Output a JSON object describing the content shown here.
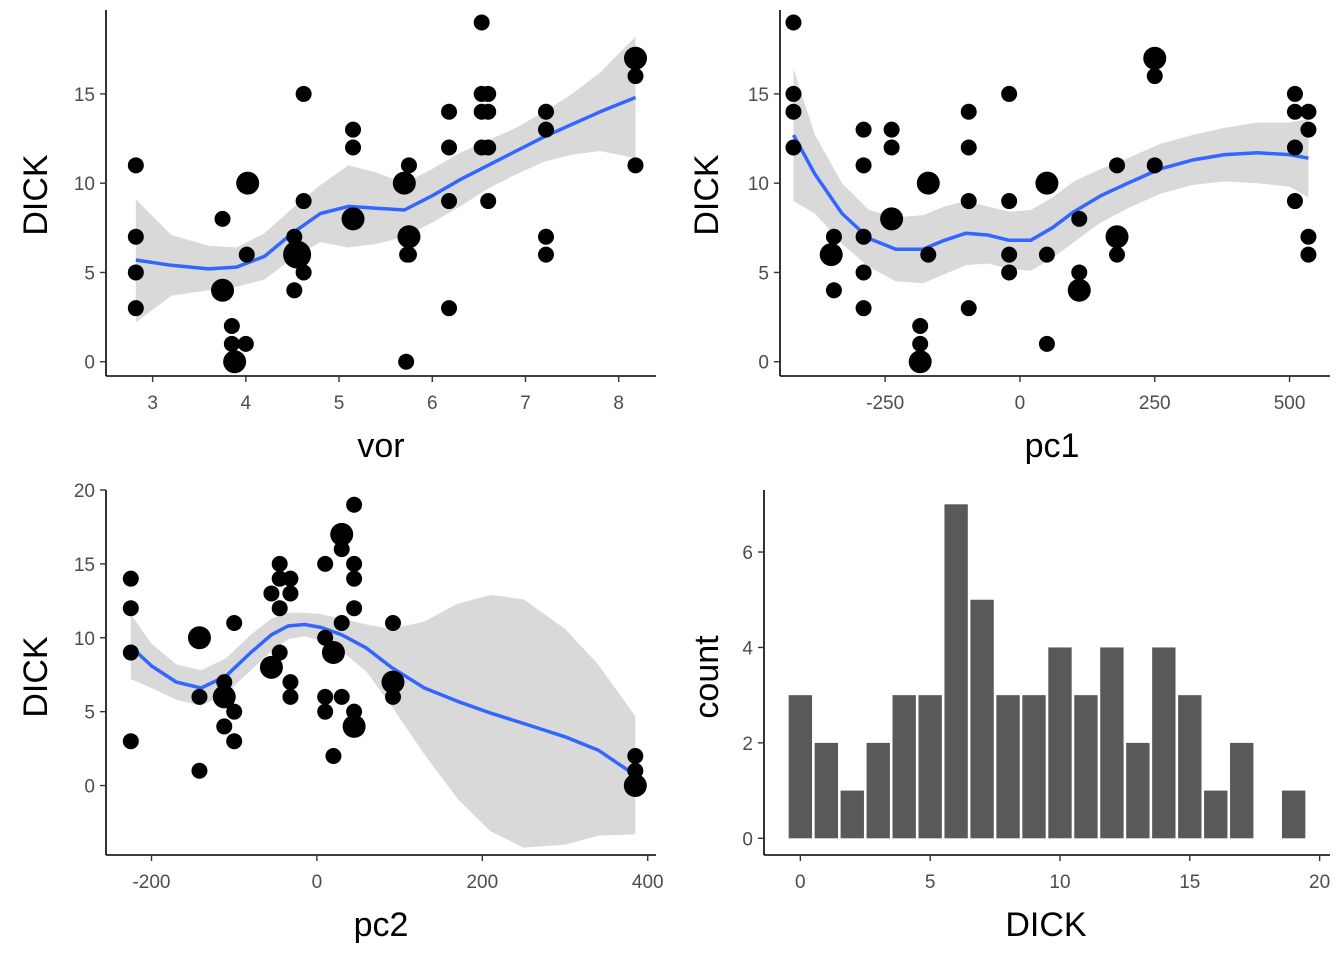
{
  "chart_data": [
    {
      "type": "scatter",
      "xlabel": "vor",
      "ylabel": "DICK",
      "xlim": [
        2.5,
        8.4
      ],
      "ylim": [
        -0.8,
        19.7
      ],
      "xticks": [
        3,
        4,
        5,
        6,
        7,
        8
      ],
      "yticks": [
        0,
        5,
        10,
        15
      ],
      "grid": false,
      "points": [
        {
          "x": 2.82,
          "y": 11,
          "size": 1
        },
        {
          "x": 2.82,
          "y": 7,
          "size": 1
        },
        {
          "x": 2.82,
          "y": 5,
          "size": 1
        },
        {
          "x": 2.82,
          "y": 3,
          "size": 1
        },
        {
          "x": 3.75,
          "y": 8,
          "size": 1
        },
        {
          "x": 3.75,
          "y": 4,
          "size": 2
        },
        {
          "x": 3.85,
          "y": 2,
          "size": 1
        },
        {
          "x": 3.85,
          "y": 1,
          "size": 1
        },
        {
          "x": 3.88,
          "y": 0,
          "size": 2
        },
        {
          "x": 4.0,
          "y": 1,
          "size": 1
        },
        {
          "x": 4.01,
          "y": 6,
          "size": 1
        },
        {
          "x": 4.02,
          "y": 10,
          "size": 2
        },
        {
          "x": 4.52,
          "y": 7,
          "size": 1
        },
        {
          "x": 4.52,
          "y": 4,
          "size": 1
        },
        {
          "x": 4.55,
          "y": 6,
          "size": 3
        },
        {
          "x": 4.62,
          "y": 9,
          "size": 1
        },
        {
          "x": 4.62,
          "y": 5,
          "size": 1
        },
        {
          "x": 4.62,
          "y": 15,
          "size": 1
        },
        {
          "x": 5.15,
          "y": 13,
          "size": 1
        },
        {
          "x": 5.15,
          "y": 12,
          "size": 1
        },
        {
          "x": 5.15,
          "y": 8,
          "size": 2
        },
        {
          "x": 5.7,
          "y": 10,
          "size": 2
        },
        {
          "x": 5.72,
          "y": 0,
          "size": 1
        },
        {
          "x": 5.73,
          "y": 6,
          "size": 1
        },
        {
          "x": 5.75,
          "y": 7,
          "size": 2
        },
        {
          "x": 5.75,
          "y": 11,
          "size": 1
        },
        {
          "x": 5.75,
          "y": 6,
          "size": 1
        },
        {
          "x": 6.18,
          "y": 14,
          "size": 1
        },
        {
          "x": 6.18,
          "y": 12,
          "size": 1
        },
        {
          "x": 6.18,
          "y": 9,
          "size": 1
        },
        {
          "x": 6.18,
          "y": 3,
          "size": 1
        },
        {
          "x": 6.53,
          "y": 19,
          "size": 1
        },
        {
          "x": 6.53,
          "y": 15,
          "size": 1
        },
        {
          "x": 6.53,
          "y": 14,
          "size": 1
        },
        {
          "x": 6.53,
          "y": 12,
          "size": 1
        },
        {
          "x": 6.6,
          "y": 15,
          "size": 1
        },
        {
          "x": 6.6,
          "y": 14,
          "size": 1
        },
        {
          "x": 6.6,
          "y": 12,
          "size": 1
        },
        {
          "x": 6.6,
          "y": 9,
          "size": 1
        },
        {
          "x": 7.22,
          "y": 14,
          "size": 1
        },
        {
          "x": 7.22,
          "y": 13,
          "size": 1
        },
        {
          "x": 7.22,
          "y": 7,
          "size": 1
        },
        {
          "x": 7.22,
          "y": 6,
          "size": 1
        },
        {
          "x": 8.18,
          "y": 17,
          "size": 2
        },
        {
          "x": 8.18,
          "y": 16,
          "size": 1
        },
        {
          "x": 8.18,
          "y": 11,
          "size": 1
        }
      ],
      "smooth": {
        "x": [
          2.82,
          3.2,
          3.6,
          3.9,
          4.2,
          4.5,
          4.8,
          5.1,
          5.4,
          5.7,
          6.0,
          6.3,
          6.6,
          6.9,
          7.2,
          7.5,
          7.8,
          8.18
        ],
        "y": [
          5.7,
          5.4,
          5.2,
          5.3,
          5.9,
          7.2,
          8.3,
          8.7,
          8.6,
          8.5,
          9.3,
          10.2,
          11.0,
          11.8,
          12.6,
          13.3,
          14.0,
          14.8
        ],
        "lower": [
          2.2,
          3.7,
          4.0,
          4.2,
          4.6,
          5.8,
          6.7,
          6.4,
          6.6,
          7.0,
          7.8,
          8.7,
          9.7,
          10.5,
          11.2,
          11.6,
          11.8,
          11.4
        ],
        "upper": [
          9.1,
          7.1,
          6.5,
          6.4,
          7.2,
          8.6,
          9.9,
          11.0,
          10.6,
          10.0,
          10.8,
          11.7,
          12.4,
          13.1,
          14.0,
          15.0,
          16.2,
          18.2
        ]
      }
    },
    {
      "type": "scatter",
      "xlabel": "pc1",
      "ylabel": "DICK",
      "xlim": [
        -445,
        575
      ],
      "ylim": [
        -0.8,
        19.7
      ],
      "xticks": [
        -250,
        0,
        250,
        500
      ],
      "yticks": [
        0,
        5,
        10,
        15
      ],
      "grid": false,
      "points": [
        {
          "x": -420,
          "y": 19,
          "size": 1
        },
        {
          "x": -420,
          "y": 15,
          "size": 1
        },
        {
          "x": -420,
          "y": 14,
          "size": 1
        },
        {
          "x": -420,
          "y": 12,
          "size": 1
        },
        {
          "x": -345,
          "y": 7,
          "size": 1
        },
        {
          "x": -350,
          "y": 6,
          "size": 2
        },
        {
          "x": -345,
          "y": 4,
          "size": 1
        },
        {
          "x": -290,
          "y": 13,
          "size": 1
        },
        {
          "x": -290,
          "y": 11,
          "size": 1
        },
        {
          "x": -290,
          "y": 7,
          "size": 1
        },
        {
          "x": -290,
          "y": 5,
          "size": 1
        },
        {
          "x": -290,
          "y": 3,
          "size": 1
        },
        {
          "x": -238,
          "y": 13,
          "size": 1
        },
        {
          "x": -238,
          "y": 12,
          "size": 1
        },
        {
          "x": -238,
          "y": 8,
          "size": 2
        },
        {
          "x": -185,
          "y": 2,
          "size": 1
        },
        {
          "x": -185,
          "y": 1,
          "size": 1
        },
        {
          "x": -185,
          "y": 0,
          "size": 2
        },
        {
          "x": -170,
          "y": 10,
          "size": 2
        },
        {
          "x": -170,
          "y": 6,
          "size": 1
        },
        {
          "x": -95,
          "y": 14,
          "size": 1
        },
        {
          "x": -95,
          "y": 12,
          "size": 1
        },
        {
          "x": -95,
          "y": 9,
          "size": 1
        },
        {
          "x": -95,
          "y": 3,
          "size": 1
        },
        {
          "x": -20,
          "y": 15,
          "size": 1
        },
        {
          "x": -20,
          "y": 9,
          "size": 1
        },
        {
          "x": -20,
          "y": 6,
          "size": 1
        },
        {
          "x": -20,
          "y": 5,
          "size": 1
        },
        {
          "x": 50,
          "y": 10,
          "size": 2
        },
        {
          "x": 50,
          "y": 6,
          "size": 1
        },
        {
          "x": 50,
          "y": 1,
          "size": 1
        },
        {
          "x": 110,
          "y": 8,
          "size": 1
        },
        {
          "x": 110,
          "y": 5,
          "size": 1
        },
        {
          "x": 110,
          "y": 4,
          "size": 2
        },
        {
          "x": 180,
          "y": 11,
          "size": 1
        },
        {
          "x": 180,
          "y": 7,
          "size": 2
        },
        {
          "x": 180,
          "y": 6,
          "size": 1
        },
        {
          "x": 250,
          "y": 17,
          "size": 2
        },
        {
          "x": 250,
          "y": 16,
          "size": 1
        },
        {
          "x": 250,
          "y": 11,
          "size": 1
        },
        {
          "x": 510,
          "y": 15,
          "size": 1
        },
        {
          "x": 510,
          "y": 14,
          "size": 1
        },
        {
          "x": 510,
          "y": 12,
          "size": 1
        },
        {
          "x": 510,
          "y": 9,
          "size": 1
        },
        {
          "x": 535,
          "y": 14,
          "size": 1
        },
        {
          "x": 535,
          "y": 13,
          "size": 1
        },
        {
          "x": 535,
          "y": 7,
          "size": 1
        },
        {
          "x": 535,
          "y": 6,
          "size": 1
        }
      ],
      "smooth": {
        "x": [
          -420,
          -380,
          -330,
          -280,
          -230,
          -180,
          -140,
          -100,
          -60,
          -20,
          20,
          60,
          100,
          150,
          200,
          260,
          320,
          380,
          440,
          500,
          535
        ],
        "y": [
          12.7,
          10.5,
          8.3,
          6.9,
          6.3,
          6.3,
          6.8,
          7.2,
          7.1,
          6.8,
          6.8,
          7.5,
          8.4,
          9.3,
          10.0,
          10.8,
          11.3,
          11.6,
          11.7,
          11.6,
          11.4
        ],
        "lower": [
          9.0,
          8.3,
          6.6,
          5.3,
          4.5,
          4.4,
          4.9,
          5.4,
          5.5,
          5.2,
          5.1,
          5.8,
          6.7,
          7.8,
          8.6,
          9.4,
          9.9,
          10.1,
          10.0,
          9.8,
          9.2
        ],
        "upper": [
          16.4,
          12.7,
          10.0,
          8.5,
          8.1,
          8.2,
          8.7,
          9.0,
          8.7,
          8.4,
          8.5,
          9.2,
          10.1,
          10.8,
          11.4,
          12.2,
          12.7,
          13.1,
          13.4,
          13.4,
          13.6
        ]
      }
    },
    {
      "type": "scatter",
      "xlabel": "pc2",
      "ylabel": "DICK",
      "xlim": [
        -255,
        410
      ],
      "ylim": [
        -4.7,
        20.0
      ],
      "xticks": [
        -200,
        0,
        200,
        400
      ],
      "yticks": [
        0,
        5,
        10,
        15,
        20
      ],
      "grid": false,
      "points": [
        {
          "x": -225,
          "y": 14,
          "size": 1
        },
        {
          "x": -225,
          "y": 12,
          "size": 1
        },
        {
          "x": -225,
          "y": 9,
          "size": 1
        },
        {
          "x": -225,
          "y": 3,
          "size": 1
        },
        {
          "x": -142,
          "y": 10,
          "size": 2
        },
        {
          "x": -142,
          "y": 6,
          "size": 1
        },
        {
          "x": -142,
          "y": 1,
          "size": 1
        },
        {
          "x": -112,
          "y": 7,
          "size": 1
        },
        {
          "x": -112,
          "y": 6,
          "size": 2
        },
        {
          "x": -112,
          "y": 4,
          "size": 1
        },
        {
          "x": -100,
          "y": 11,
          "size": 1
        },
        {
          "x": -100,
          "y": 5,
          "size": 1
        },
        {
          "x": -100,
          "y": 3,
          "size": 1
        },
        {
          "x": -55,
          "y": 13,
          "size": 1
        },
        {
          "x": -55,
          "y": 8,
          "size": 2
        },
        {
          "x": -45,
          "y": 15,
          "size": 1
        },
        {
          "x": -45,
          "y": 14,
          "size": 1
        },
        {
          "x": -45,
          "y": 12,
          "size": 1
        },
        {
          "x": -45,
          "y": 9,
          "size": 1
        },
        {
          "x": -32,
          "y": 14,
          "size": 1
        },
        {
          "x": -32,
          "y": 13,
          "size": 1
        },
        {
          "x": -32,
          "y": 7,
          "size": 1
        },
        {
          "x": -32,
          "y": 6,
          "size": 1
        },
        {
          "x": 10,
          "y": 15,
          "size": 1
        },
        {
          "x": 10,
          "y": 10,
          "size": 1
        },
        {
          "x": 10,
          "y": 6,
          "size": 1
        },
        {
          "x": 10,
          "y": 5,
          "size": 1
        },
        {
          "x": 20,
          "y": 9,
          "size": 2
        },
        {
          "x": 20,
          "y": 2,
          "size": 1
        },
        {
          "x": 30,
          "y": 17,
          "size": 2
        },
        {
          "x": 30,
          "y": 16,
          "size": 1
        },
        {
          "x": 30,
          "y": 11,
          "size": 1
        },
        {
          "x": 30,
          "y": 6,
          "size": 1
        },
        {
          "x": 45,
          "y": 19,
          "size": 1
        },
        {
          "x": 45,
          "y": 15,
          "size": 1
        },
        {
          "x": 45,
          "y": 14,
          "size": 1
        },
        {
          "x": 45,
          "y": 12,
          "size": 1
        },
        {
          "x": 45,
          "y": 5,
          "size": 1
        },
        {
          "x": 45,
          "y": 4,
          "size": 2
        },
        {
          "x": 92,
          "y": 11,
          "size": 1
        },
        {
          "x": 92,
          "y": 7,
          "size": 2
        },
        {
          "x": 92,
          "y": 6,
          "size": 1
        },
        {
          "x": 385,
          "y": 2,
          "size": 1
        },
        {
          "x": 385,
          "y": 1,
          "size": 1
        },
        {
          "x": 385,
          "y": 0,
          "size": 2
        }
      ],
      "smooth": {
        "x": [
          -225,
          -200,
          -170,
          -140,
          -110,
          -80,
          -55,
          -35,
          -15,
          5,
          30,
          60,
          90,
          130,
          170,
          210,
          250,
          300,
          340,
          385
        ],
        "y": [
          9.4,
          8.1,
          7.0,
          6.6,
          7.4,
          9.0,
          10.2,
          10.8,
          10.9,
          10.7,
          10.2,
          9.3,
          8.0,
          6.6,
          5.7,
          4.9,
          4.2,
          3.3,
          2.4,
          0.7
        ],
        "lower": [
          7.2,
          6.6,
          5.8,
          5.4,
          6.2,
          7.8,
          9.1,
          9.9,
          10.1,
          9.8,
          9.1,
          7.7,
          5.4,
          2.1,
          -0.9,
          -3.1,
          -4.2,
          -4.0,
          -3.4,
          -3.3
        ],
        "upper": [
          11.6,
          9.6,
          8.2,
          7.8,
          8.6,
          10.2,
          11.3,
          11.7,
          11.7,
          11.6,
          11.3,
          10.9,
          10.6,
          11.1,
          12.3,
          12.9,
          12.6,
          10.6,
          8.2,
          4.7
        ]
      }
    },
    {
      "type": "bar",
      "xlabel": "DICK",
      "ylabel": "count",
      "xlim": [
        -1.4,
        20.4
      ],
      "ylim": [
        -0.35,
        7.3
      ],
      "xticks": [
        0,
        5,
        10,
        15,
        20
      ],
      "yticks": [
        0,
        2,
        4,
        6
      ],
      "grid": false,
      "bar_color": "#595959",
      "categories": [
        0,
        1,
        2,
        3,
        4,
        5,
        6,
        7,
        8,
        9,
        10,
        11,
        12,
        13,
        14,
        15,
        16,
        17,
        18,
        19
      ],
      "values": [
        3,
        2,
        1,
        2,
        3,
        3,
        7,
        5,
        3,
        3,
        4,
        3,
        4,
        2,
        4,
        3,
        1,
        2,
        0,
        1
      ]
    }
  ]
}
